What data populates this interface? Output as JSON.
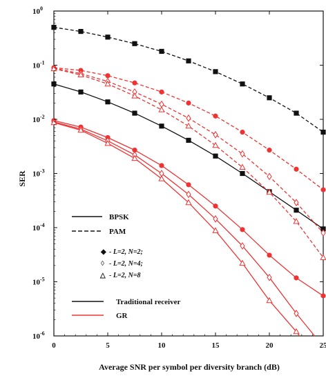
{
  "chart_data": {
    "type": "line",
    "title": "",
    "xlabel": "Average SNR per symbol per diversity branch (dB)",
    "ylabel": "SER",
    "xlim": [
      0,
      25
    ],
    "ylim_exp": [
      -6,
      0
    ],
    "yscale": "log",
    "x_ticks": [
      "0",
      "5",
      "10",
      "15",
      "20",
      "25"
    ],
    "y_ticks": [
      {
        "base": "10",
        "exp": "0"
      },
      {
        "base": "10",
        "exp": "-1"
      },
      {
        "base": "10",
        "exp": "-2"
      },
      {
        "base": "10",
        "exp": "-3"
      },
      {
        "base": "10",
        "exp": "-4"
      },
      {
        "base": "10",
        "exp": "-5"
      },
      {
        "base": "10",
        "exp": "-6"
      }
    ],
    "grid": false,
    "colors": {
      "traditional": "#111111",
      "gr": "#ee3333"
    },
    "legend": {
      "line_styles": [
        {
          "label": "BPSK",
          "dash": false
        },
        {
          "label": "PAM",
          "dash": true
        }
      ],
      "markers": [
        {
          "symbol": "◆",
          "text": "- L=2, N=2;"
        },
        {
          "symbol": "◊",
          "text": "- L=2, N=4;"
        },
        {
          "symbol": "△",
          "text": "- L=2, N=8"
        }
      ],
      "receivers": [
        {
          "label": "Traditional receiver",
          "color": "#111111"
        },
        {
          "label": "GR",
          "color": "#ee3333"
        }
      ]
    },
    "series": [
      {
        "receiver": "traditional",
        "modulation": "PAM",
        "dash": true,
        "color": "#111111",
        "marker": "square",
        "x": [
          0,
          2.5,
          5,
          7.5,
          10,
          12.5,
          15,
          17.5,
          20,
          22.5,
          25
        ],
        "y": [
          0.5,
          0.42,
          0.33,
          0.25,
          0.18,
          0.12,
          0.076,
          0.045,
          0.025,
          0.013,
          0.0058
        ]
      },
      {
        "receiver": "traditional",
        "modulation": "BPSK",
        "dash": false,
        "color": "#111111",
        "marker": "square",
        "x": [
          0,
          2.5,
          5,
          7.5,
          10,
          12.5,
          15,
          17.5,
          20,
          22.5,
          25
        ],
        "y": [
          0.045,
          0.032,
          0.021,
          0.013,
          0.0075,
          0.0041,
          0.0021,
          0.001,
          0.00046,
          0.00021,
          9.46e-05
        ]
      },
      {
        "receiver": "gr",
        "modulation": "PAM",
        "dash": true,
        "color": "#ee3333",
        "marker": "diamond-filled",
        "x": [
          0,
          2.5,
          5,
          7.5,
          10,
          12.5,
          15,
          17.5,
          20,
          22.5,
          25
        ],
        "y": [
          0.09,
          0.08,
          0.064,
          0.047,
          0.032,
          0.02,
          0.0115,
          0.0058,
          0.0027,
          0.0012,
          0.0005
        ]
      },
      {
        "receiver": "gr",
        "modulation": "PAM",
        "dash": true,
        "color": "#ee3333",
        "marker": "diamond-open",
        "x": [
          0,
          2.5,
          5,
          7.5,
          10,
          12.5,
          15,
          17.5,
          20,
          22.5,
          25
        ],
        "y": [
          0.088,
          0.07,
          0.05,
          0.032,
          0.019,
          0.0105,
          0.0052,
          0.0023,
          0.00088,
          0.00029,
          8e-05
        ]
      },
      {
        "receiver": "gr",
        "modulation": "PAM",
        "dash": true,
        "color": "#ee3333",
        "marker": "triangle",
        "x": [
          0,
          2.5,
          5,
          7.5,
          10,
          12.5,
          15,
          17.5,
          20,
          22.5,
          25
        ],
        "y": [
          0.086,
          0.066,
          0.045,
          0.027,
          0.015,
          0.0075,
          0.0033,
          0.0013,
          0.00045,
          0.00013,
          2.8e-05
        ]
      },
      {
        "receiver": "gr",
        "modulation": "BPSK",
        "dash": false,
        "color": "#ee3333",
        "marker": "diamond-filled",
        "x": [
          0,
          2.5,
          5,
          7.5,
          10,
          12.5,
          15,
          17.5,
          20,
          22.5,
          25
        ],
        "y": [
          0.0095,
          0.0072,
          0.0046,
          0.0027,
          0.0014,
          0.00062,
          0.00025,
          9.2e-05,
          3.1e-05,
          1.18e-05,
          5.5e-06
        ]
      },
      {
        "receiver": "gr",
        "modulation": "BPSK",
        "dash": false,
        "color": "#ee3333",
        "marker": "diamond-open",
        "x": [
          0,
          2.5,
          5,
          7.5,
          10,
          12.5,
          15,
          17.5,
          20,
          22.5,
          24.2
        ],
        "y": [
          0.009,
          0.0066,
          0.004,
          0.0022,
          0.001,
          0.00041,
          0.000145,
          4.6e-05,
          1.2e-05,
          2.6e-06,
          1e-06
        ]
      },
      {
        "receiver": "gr",
        "modulation": "BPSK",
        "dash": false,
        "color": "#ee3333",
        "marker": "triangle",
        "x": [
          0,
          2.5,
          5,
          7.5,
          10,
          12.5,
          15,
          17.5,
          20,
          22.5,
          22.8
        ],
        "y": [
          0.0087,
          0.0063,
          0.0036,
          0.0019,
          0.0008,
          0.00029,
          8.8e-05,
          2.2e-05,
          4.5e-06,
          1.2e-06,
          1e-06
        ]
      }
    ]
  }
}
